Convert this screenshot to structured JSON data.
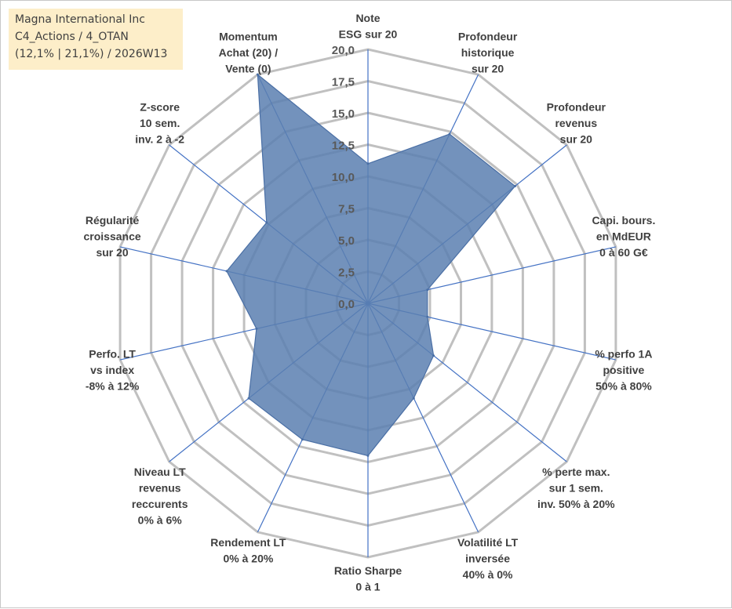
{
  "title_box": {
    "line1": "Magna International Inc",
    "line2": "C4_Actions / 4_OTAN",
    "line3": "(12,1% | 21,1%) / 2026W13"
  },
  "colors": {
    "fill": "#5b7fb0",
    "fill_opacity": 0.85,
    "stroke": "#4a6fa5",
    "axis": "#4472c4",
    "grid": "#c0c0c0",
    "title_bg": "#fdeec9"
  },
  "chart_data": {
    "type": "radar",
    "title": "",
    "rmin": 0,
    "rmax": 20,
    "ticks": [
      "0,0",
      "2,5",
      "5,0",
      "7,5",
      "10,0",
      "12,5",
      "15,0",
      "17,5",
      "20,0"
    ],
    "categories": [
      [
        "Note",
        "ESG sur 20"
      ],
      [
        "Profondeur",
        "historique",
        "sur 20"
      ],
      [
        "Profondeur",
        "revenus",
        "sur 20"
      ],
      [
        "Capi. bours.",
        "en MdEUR",
        "0 à 60 G€"
      ],
      [
        "% perfo 1A",
        "positive",
        "50% à 80%"
      ],
      [
        "% perte max.",
        "sur 1 sem.",
        "inv. 50% à 20%"
      ],
      [
        "Volatilité LT",
        "inversée",
        "40% à 0%"
      ],
      [
        "Ratio Sharpe",
        "0 à 1"
      ],
      [
        "Rendement LT",
        "0% à 20%"
      ],
      [
        "Niveau LT",
        "revenus",
        "reccurents",
        "0% à 6%"
      ],
      [
        "Perfo. LT",
        "vs index",
        "-8% à 12%"
      ],
      [
        "Régularité",
        "croissance",
        "sur 20"
      ],
      [
        "Z-score",
        "10 sem.",
        "inv. 2 à -2"
      ],
      [
        "Momentum",
        "Achat (20) /",
        "Vente (0)"
      ]
    ],
    "values": [
      11.0,
      14.8,
      14.8,
      4.8,
      4.8,
      6.6,
      8.3,
      12.0,
      11.9,
      12.0,
      9.0,
      11.4,
      10.2,
      20.0
    ]
  }
}
